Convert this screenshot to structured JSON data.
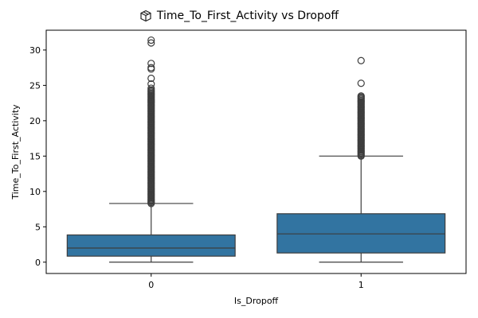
{
  "chart_data": {
    "type": "box",
    "title": "Time_To_First_Activity vs Dropoff",
    "title_icon": "package-icon",
    "xlabel": "Is_Dropoff",
    "ylabel": "Time_To_First_Activity",
    "ylim": [
      -1.6,
      32.8
    ],
    "yticks": [
      0,
      5,
      10,
      15,
      20,
      25,
      30
    ],
    "categories": [
      "0",
      "1"
    ],
    "box_color": "#3274a1",
    "edge_color": "#3d3d3d",
    "boxes": [
      {
        "category": "0",
        "q1": 0.85,
        "median": 2.0,
        "q3": 3.85,
        "whisker_low": 0.0,
        "whisker_high": 8.3,
        "outlier_band": [
          8.3,
          24.4
        ],
        "outliers": [
          24.6,
          25.2,
          26.0,
          27.3,
          27.5,
          28.1,
          31.0,
          31.4
        ]
      },
      {
        "category": "1",
        "q1": 1.3,
        "median": 4.0,
        "q3": 6.85,
        "whisker_low": 0.0,
        "whisker_high": 15.0,
        "outlier_band": [
          15.0,
          23.6
        ],
        "outliers": [
          25.3,
          28.5
        ]
      }
    ]
  }
}
